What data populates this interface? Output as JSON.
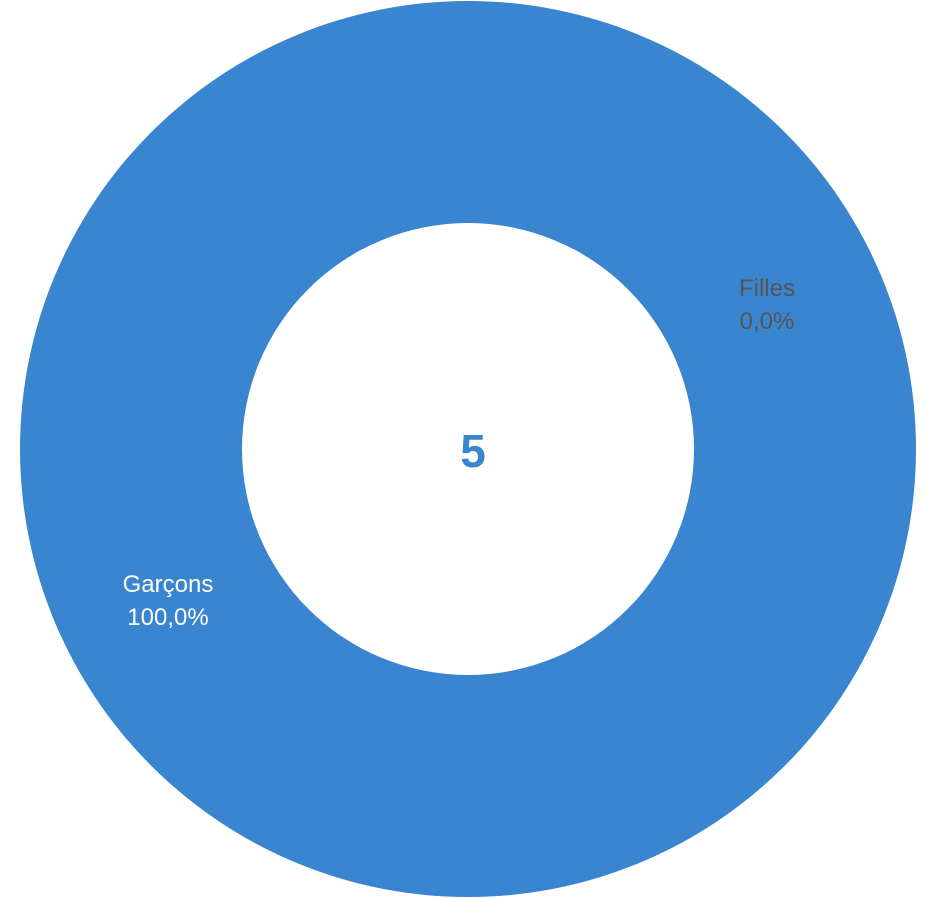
{
  "chart_data": {
    "type": "pie",
    "variant": "donut",
    "center_label": "5",
    "slices": [
      {
        "label": "Garçons",
        "value": 100.0,
        "value_label": "100,0%",
        "color": "#3a85d0",
        "label_color": "#ffffff"
      },
      {
        "label": "Filles",
        "value": 0.0,
        "value_label": "0,0%",
        "color": "#e0e0e0",
        "label_color": "#555555"
      }
    ],
    "center_label_color": "#3a85d0",
    "legend": "none"
  }
}
